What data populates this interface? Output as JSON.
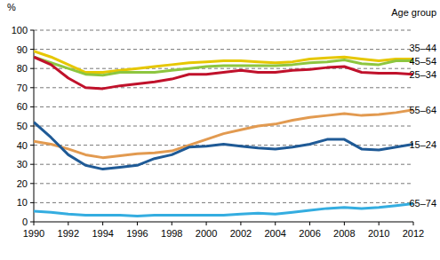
{
  "chart_data": {
    "type": "line",
    "y_label": "%",
    "legend_title": "Age group",
    "legend": "right",
    "grid": true,
    "x": [
      1990,
      1991,
      1992,
      1993,
      1994,
      1995,
      1996,
      1997,
      1998,
      1999,
      2000,
      2001,
      2002,
      2003,
      2004,
      2005,
      2006,
      2007,
      2008,
      2009,
      2010,
      2011,
      2012
    ],
    "xlim": [
      1990,
      2012
    ],
    "xticks": [
      1990,
      1992,
      1994,
      1996,
      1998,
      2000,
      2002,
      2004,
      2006,
      2008,
      2010,
      2012
    ],
    "ylim": [
      0,
      100
    ],
    "yticks": [
      0,
      10,
      20,
      30,
      40,
      50,
      60,
      70,
      80,
      90,
      100
    ],
    "series": [
      {
        "name": "35–44",
        "color": "#e6c700",
        "values": [
          89,
          86,
          82,
          78,
          78,
          79,
          80,
          81,
          82,
          83,
          83.5,
          84,
          84,
          83.5,
          83,
          83.5,
          85,
          85.5,
          86,
          85,
          84,
          85,
          85
        ]
      },
      {
        "name": "45–54",
        "color": "#8dc63f",
        "values": [
          86,
          83,
          80,
          77,
          76.5,
          78,
          78,
          78,
          79,
          80,
          81,
          81.5,
          81.5,
          81.5,
          81.5,
          82,
          83,
          83.5,
          84.5,
          82.5,
          82,
          84,
          84
        ]
      },
      {
        "name": "25–34",
        "color": "#c0112b",
        "values": [
          86,
          82,
          75,
          70,
          69.5,
          71,
          72,
          73,
          74.5,
          77,
          77,
          78,
          79,
          78,
          78,
          79,
          79.5,
          80.5,
          81,
          78,
          77.5,
          77.5,
          77
        ]
      },
      {
        "name": "55–64",
        "color": "#e29a50",
        "values": [
          42,
          40.5,
          38,
          35,
          33.5,
          34.5,
          35.5,
          36,
          37,
          40,
          43,
          46,
          48,
          50,
          51,
          53,
          54.5,
          55.5,
          56.5,
          55.5,
          56,
          57,
          58.5
        ]
      },
      {
        "name": "15–24",
        "color": "#1f5a96",
        "values": [
          52,
          44,
          35,
          29.5,
          27.5,
          28.5,
          29.5,
          33,
          35,
          39,
          39.5,
          40.5,
          39.5,
          38.5,
          38,
          39,
          40.5,
          43,
          43,
          38,
          37.5,
          39,
          40.5
        ]
      },
      {
        "name": "65–74",
        "color": "#34ade0",
        "values": [
          5.5,
          5,
          4,
          3.5,
          3.5,
          3.5,
          3,
          3.5,
          3.5,
          3.5,
          3.5,
          3.5,
          4,
          4.5,
          4,
          5,
          6,
          7,
          7.5,
          7,
          7.5,
          8.5,
          9.5
        ]
      }
    ]
  }
}
